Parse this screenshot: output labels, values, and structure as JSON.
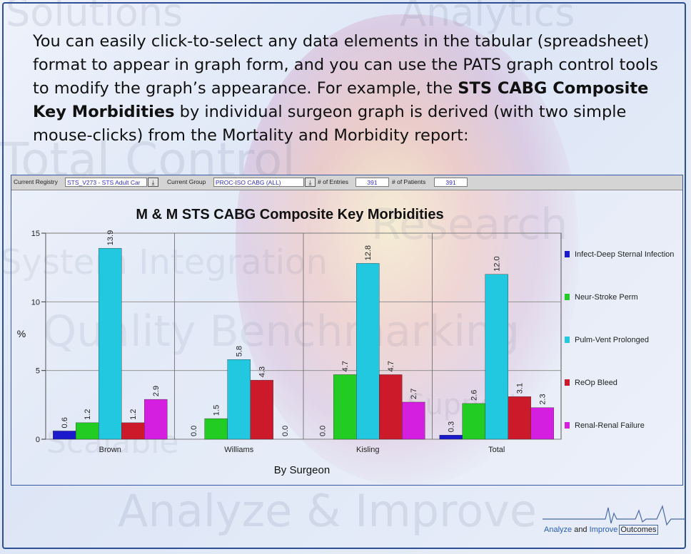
{
  "intro": {
    "part1": "You can easily click-to-select any data elements in the tabular (spreadsheet) format to appear in graph form, and you can use the PATS graph control tools to modify the graph’s appearance. For example, the ",
    "bold": "STS CABG Composite Key Morbidities",
    "part2": " by individual surgeon graph is derived (with two simple mouse-clicks) from the Mortality and Morbidity report:"
  },
  "background_words": [
    "Solutions",
    "Analytics",
    "Total Control",
    "Research",
    "System Integration",
    "Quality Benchmarking",
    "Scalable",
    "Support",
    "Analyze & Improve"
  ],
  "toolbar": {
    "registry_label": "Current Registry",
    "registry_value": "STS_V273 - STS Adult Car",
    "group_label": "Current Group",
    "group_value": "PROC-ISO CABG (ALL)",
    "entries_label": "# of Entries",
    "entries_value": "391",
    "patients_label": "# of Patients",
    "patients_value": "391",
    "dropdown_icon": "download-arrow-icon"
  },
  "chart_data": {
    "type": "bar",
    "title": "M & M  STS CABG Composite Key Morbidities",
    "xlabel": "By Surgeon",
    "ylabel": "%",
    "ylim": [
      0,
      15
    ],
    "yticks": [
      0,
      5,
      10,
      15
    ],
    "grid": true,
    "legend_position": "right",
    "categories": [
      "Brown",
      "Williams",
      "Kisling",
      "Total"
    ],
    "series": [
      {
        "name": "Infect-Deep Sternal Infection",
        "color": "#1a1acc",
        "values": [
          0.6,
          0.0,
          0.0,
          0.3
        ]
      },
      {
        "name": "Neur-Stroke Perm",
        "color": "#22cc22",
        "values": [
          1.2,
          1.5,
          4.7,
          2.6
        ]
      },
      {
        "name": "Pulm-Vent Prolonged",
        "color": "#22c8e0",
        "values": [
          13.9,
          5.8,
          12.8,
          12.0
        ]
      },
      {
        "name": "ReOp Bleed",
        "color": "#cc1a2a",
        "values": [
          1.2,
          4.3,
          4.7,
          3.1
        ]
      },
      {
        "name": "Renal-Renal Failure",
        "color": "#d41ee0",
        "values": [
          2.9,
          0.0,
          2.7,
          2.3
        ]
      }
    ],
    "labels": [
      [
        "0.6",
        "0.0",
        "0.0",
        "0.3"
      ],
      [
        "1.2",
        "1.5",
        "4.7",
        "2.6"
      ],
      [
        "13.9",
        "5.8",
        "12.8",
        "12.0"
      ],
      [
        "1.2",
        "4.3",
        "4.7",
        "3.1"
      ],
      [
        "2.9",
        "0.0",
        "2.7",
        "2.3"
      ]
    ]
  },
  "footer": {
    "word1": "Analyze",
    "and": " and ",
    "word2": "Improve",
    "word3": "Outcomes"
  }
}
